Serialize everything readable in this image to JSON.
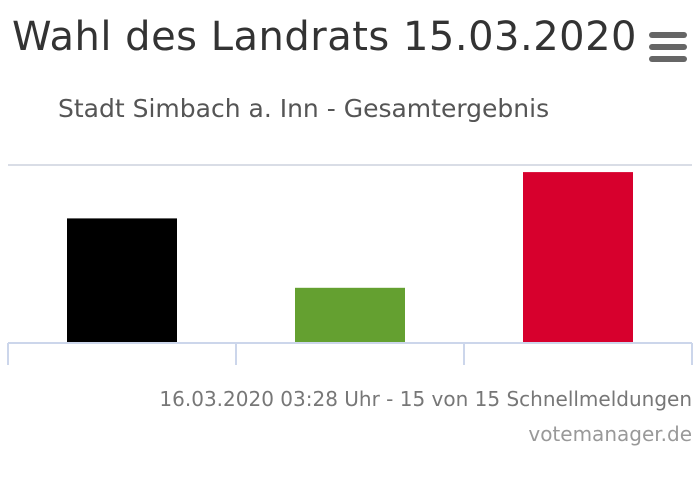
{
  "header": {
    "title": "Wahl des Landrats 15.03.2020",
    "subtitle": "Stadt Simbach a. Inn - Gesamtergebnis",
    "menu_icon": "hamburger-menu-icon"
  },
  "footer": {
    "status": "16.03.2020 03:28 Uhr - 15 von 15 Schnellmeldungen",
    "credit": "votemanager.de"
  },
  "colors": {
    "grid": "#d9dde6",
    "axis": "#ccd6eb"
  },
  "chart_data": {
    "type": "bar",
    "categories": [
      "",
      "",
      ""
    ],
    "values": [
      35,
      15.5,
      48
    ],
    "colors": [
      "#000000",
      "#64a030",
      "#d7002d"
    ],
    "ylim": [
      0,
      50
    ],
    "grid": false,
    "legend": "none"
  }
}
